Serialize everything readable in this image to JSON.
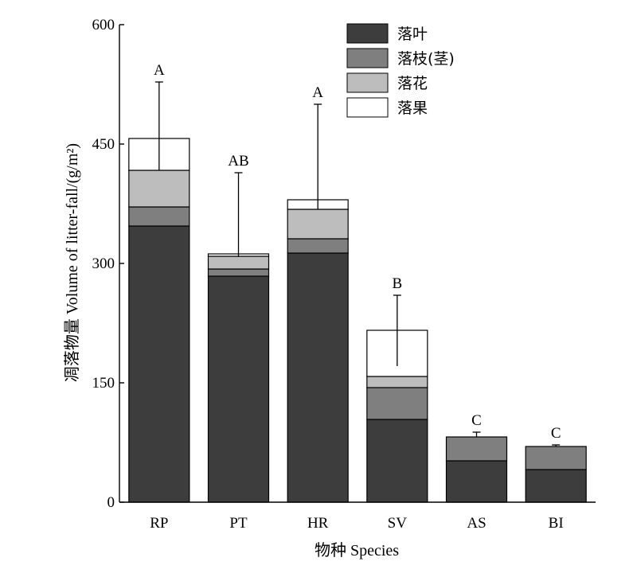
{
  "chart_data": {
    "type": "bar",
    "stacked": true,
    "xlabel": "物种 Species",
    "ylabel": "凋落物量 Volume of litter-fall/(g/m²)",
    "ylim": [
      0,
      600
    ],
    "yticks": [
      "0",
      "150",
      "300",
      "450",
      "600"
    ],
    "categories": [
      "RP",
      "PT",
      "HR",
      "SV",
      "AS",
      "BI"
    ],
    "series": [
      {
        "name": "落叶",
        "color": "#3d3d3d",
        "values": [
          347,
          284,
          313,
          104,
          52,
          41
        ]
      },
      {
        "name": "落枝(茎)",
        "color": "#7f7f7f",
        "values": [
          24,
          9,
          18,
          40,
          30,
          29
        ]
      },
      {
        "name": "落花",
        "color": "#bdbdbd",
        "values": [
          46,
          16,
          37,
          14,
          0,
          0
        ]
      },
      {
        "name": "落果",
        "color": "#ffffff",
        "values": [
          40,
          3,
          12,
          58,
          0,
          0
        ]
      }
    ],
    "error_bars": [
      {
        "low": 417,
        "high": 528
      },
      {
        "low": 308,
        "high": 414
      },
      {
        "low": 368,
        "high": 500
      },
      {
        "low": 171,
        "high": 260
      },
      {
        "low": 82,
        "high": 88
      },
      {
        "low": 70,
        "high": 72
      }
    ],
    "significance_labels": [
      "A",
      "AB",
      "A",
      "B",
      "C",
      "C"
    ],
    "legend_position": "top-right"
  }
}
